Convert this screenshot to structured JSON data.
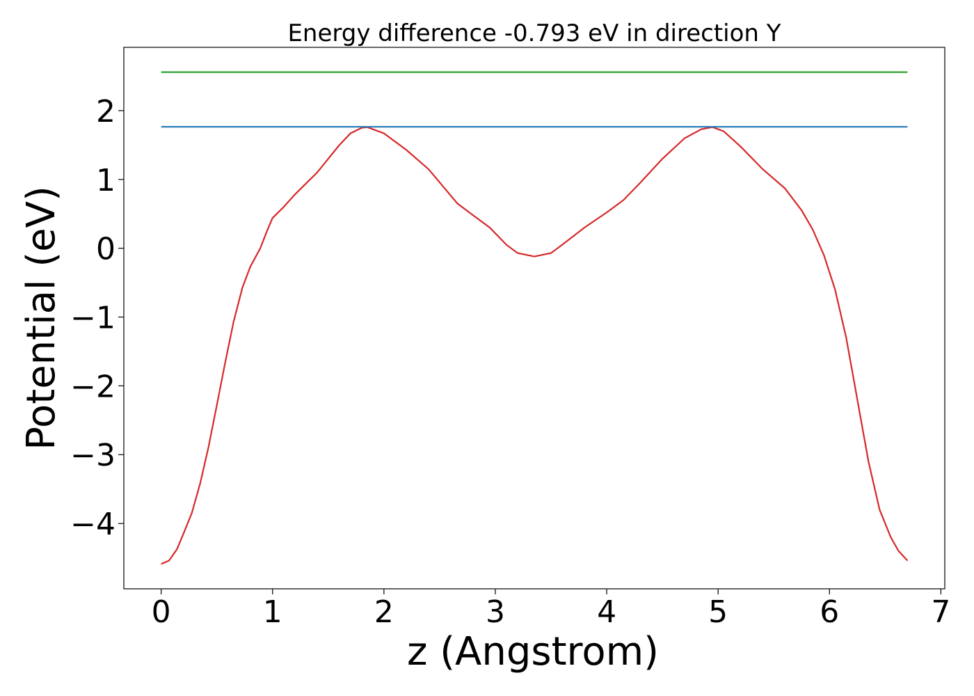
{
  "chart_data": {
    "type": "line",
    "title": "Energy difference -0.793 eV in direction Y",
    "x_label": "z (Angstrom)",
    "y_label": "Potential (eV)",
    "xlim": [
      -0.335,
      7.035
    ],
    "ylim": [
      -4.95,
      2.92
    ],
    "xticks": [
      0,
      1,
      2,
      3,
      4,
      5,
      6,
      7
    ],
    "yticks": [
      {
        "value": -4,
        "label": "−4"
      },
      {
        "value": -3,
        "label": "−3"
      },
      {
        "value": -2,
        "label": "−2"
      },
      {
        "value": -1,
        "label": "−1"
      },
      0,
      1,
      2
    ],
    "series": [
      {
        "color": "#d62728",
        "x": [
          0,
          0.07,
          0.14,
          0.2,
          0.275,
          0.35,
          0.425,
          0.5,
          0.575,
          0.65,
          0.73,
          0.8,
          0.89,
          0.95,
          1.0,
          1.1,
          1.2,
          1.4,
          1.6,
          1.7,
          1.8,
          1.85,
          2.0,
          2.2,
          2.4,
          2.66,
          2.8,
          2.95,
          3.1,
          3.2,
          3.35,
          3.5,
          3.6,
          3.8,
          4.0,
          4.15,
          4.3,
          4.5,
          4.7,
          4.85,
          4.95,
          5.05,
          5.2,
          5.4,
          5.6,
          5.75,
          5.85,
          5.95,
          6.05,
          6.15,
          6.25,
          6.35,
          6.45,
          6.55,
          6.62,
          6.7
        ],
        "values": [
          -4.59,
          -4.54,
          -4.38,
          -4.15,
          -3.85,
          -3.42,
          -2.89,
          -2.28,
          -1.66,
          -1.07,
          -0.57,
          -0.27,
          0.0,
          0.25,
          0.44,
          0.6,
          0.78,
          1.1,
          1.5,
          1.67,
          1.75,
          1.76,
          1.67,
          1.43,
          1.15,
          0.65,
          0.48,
          0.3,
          0.05,
          -0.07,
          -0.12,
          -0.07,
          0.05,
          0.3,
          0.52,
          0.7,
          0.95,
          1.3,
          1.6,
          1.73,
          1.76,
          1.7,
          1.48,
          1.15,
          0.87,
          0.55,
          0.27,
          -0.1,
          -0.6,
          -1.3,
          -2.2,
          -3.1,
          -3.8,
          -4.2,
          -4.4,
          -4.54
        ]
      },
      {
        "color": "#1f77b4",
        "x": [
          0,
          6.7
        ],
        "values": [
          1.765,
          1.765
        ]
      },
      {
        "color": "#2ca02c",
        "x": [
          0,
          6.7
        ],
        "values": [
          2.56,
          2.56
        ]
      }
    ]
  }
}
